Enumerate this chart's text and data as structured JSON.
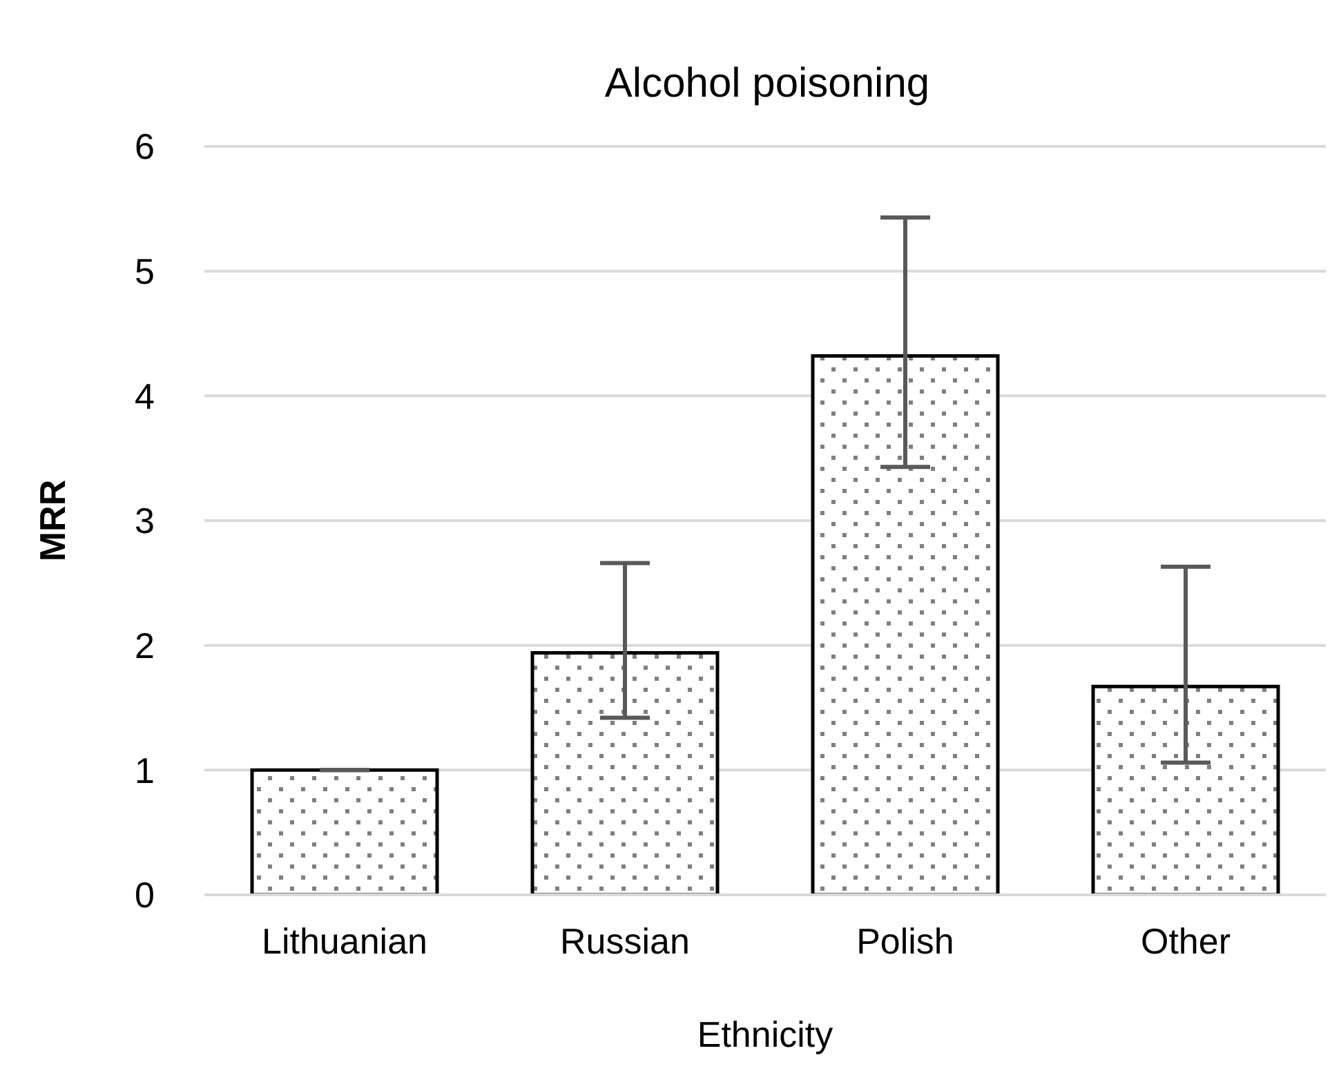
{
  "chart_data": {
    "type": "bar",
    "title": "Alcohol poisoning",
    "xlabel": "Ethnicity",
    "ylabel": "MRR",
    "categories": [
      "Lithuanian",
      "Russian",
      "Polish",
      "Other"
    ],
    "values": [
      1.0,
      1.94,
      4.32,
      1.67
    ],
    "errors": [
      [
        1.0,
        1.0
      ],
      [
        1.42,
        2.66
      ],
      [
        3.43,
        5.43
      ],
      [
        1.06,
        2.63
      ]
    ],
    "color": "#000000",
    "ylim": [
      0,
      6
    ],
    "yticks": [
      0,
      1,
      2,
      3,
      4,
      5,
      6
    ],
    "grid": "y"
  }
}
